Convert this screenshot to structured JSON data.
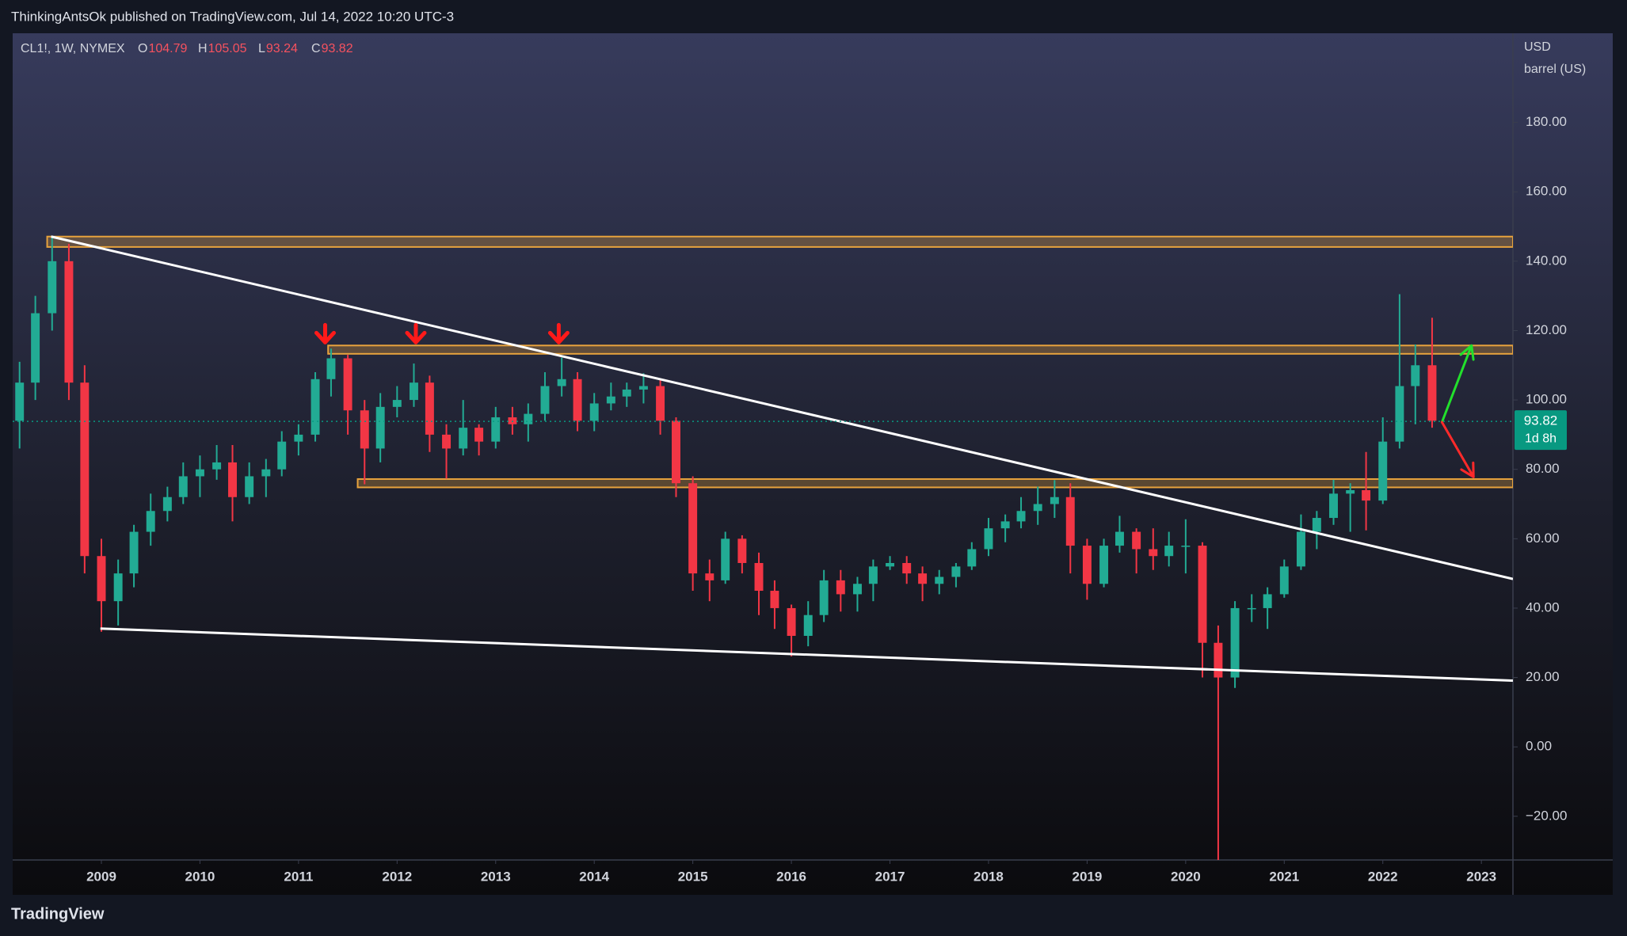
{
  "header": {
    "publisher": "ThinkingAntsOk published on TradingView.com, Jul 14, 2022 10:20 UTC-3",
    "symbol": "CL1!, 1W, NYMEX",
    "ohlc": [
      {
        "key": "O",
        "value": 104.79
      },
      {
        "key": "H",
        "value": 105.05
      },
      {
        "key": "L",
        "value": 93.24
      },
      {
        "key": "C",
        "value": 93.82
      }
    ]
  },
  "footer": {
    "brand": "TradingView"
  },
  "chart_data": {
    "type": "candlestick",
    "currency": "USD",
    "unit": "barrel (US)",
    "x": [
      2008.17,
      2008.33,
      2008.5,
      2008.67,
      2008.83,
      2009.0,
      2009.17,
      2009.33,
      2009.5,
      2009.67,
      2009.83,
      2010.0,
      2010.17,
      2010.33,
      2010.5,
      2010.67,
      2010.83,
      2011.0,
      2011.17,
      2011.33,
      2011.5,
      2011.67,
      2011.83,
      2012.0,
      2012.17,
      2012.33,
      2012.5,
      2012.67,
      2012.83,
      2013.0,
      2013.17,
      2013.33,
      2013.5,
      2013.67,
      2013.83,
      2014.0,
      2014.17,
      2014.33,
      2014.5,
      2014.67,
      2014.83,
      2015.0,
      2015.17,
      2015.33,
      2015.5,
      2015.67,
      2015.83,
      2016.0,
      2016.17,
      2016.33,
      2016.5,
      2016.67,
      2016.83,
      2017.0,
      2017.17,
      2017.33,
      2017.5,
      2017.67,
      2017.83,
      2018.0,
      2018.17,
      2018.33,
      2018.5,
      2018.67,
      2018.83,
      2019.0,
      2019.17,
      2019.33,
      2019.5,
      2019.67,
      2019.83,
      2020.0,
      2020.17,
      2020.33,
      2020.5,
      2020.67,
      2020.83,
      2021.0,
      2021.17,
      2021.33,
      2021.5,
      2021.67,
      2021.83,
      2022.0,
      2022.17,
      2022.33,
      2022.5
    ],
    "open": [
      94,
      105,
      125,
      140,
      105,
      55,
      42,
      50,
      62,
      68,
      72,
      78,
      80,
      82,
      72,
      78,
      80,
      88,
      90,
      106,
      112,
      97,
      86,
      98,
      100,
      105,
      90,
      86,
      92,
      88,
      95,
      93,
      96,
      104,
      106,
      94,
      99,
      101,
      103,
      104,
      94,
      76,
      50,
      48,
      60,
      53,
      45,
      40,
      32,
      38,
      48,
      44,
      47,
      52,
      53,
      50,
      47,
      49,
      52,
      57,
      63,
      65,
      68,
      70,
      72,
      58,
      47,
      58,
      62,
      57,
      55,
      58,
      58,
      30,
      20,
      40,
      40,
      44,
      52,
      62,
      66,
      73,
      74,
      71,
      88,
      104,
      110
    ],
    "high": [
      111,
      130,
      147.3,
      145,
      110,
      60,
      54,
      64,
      73,
      75,
      82,
      84,
      87,
      87,
      82,
      83,
      91,
      93,
      108,
      114.8,
      113,
      100,
      102,
      104,
      110.5,
      107,
      93,
      100,
      93,
      98,
      98,
      99,
      108,
      112.2,
      108,
      102,
      105,
      105,
      107.7,
      106,
      95,
      78,
      54,
      62,
      61,
      56,
      48,
      41,
      42,
      51,
      51,
      49,
      54,
      55,
      55,
      52,
      51,
      53,
      59,
      66,
      67,
      72,
      75,
      76.9,
      76,
      60,
      60,
      66.6,
      63,
      63,
      62,
      65.6,
      59,
      35,
      42,
      44,
      46,
      54,
      67,
      68,
      77,
      76,
      85,
      95,
      130.5,
      116,
      123.7
    ],
    "low": [
      86,
      100,
      120,
      100,
      50,
      33.2,
      35,
      46,
      58,
      65,
      70,
      72,
      77,
      65,
      70,
      72,
      78,
      84,
      88,
      101,
      90,
      75.7,
      82,
      95,
      98,
      85,
      77.3,
      84,
      84,
      86,
      90,
      88,
      94,
      101,
      91,
      91,
      97,
      98,
      99,
      90,
      72,
      45,
      42,
      47,
      50,
      38,
      34,
      26.1,
      29,
      36,
      39,
      39,
      42,
      51,
      47,
      42,
      44,
      46,
      51,
      55,
      59,
      63,
      64,
      66,
      50,
      42.4,
      46,
      56,
      50,
      51,
      52,
      50,
      20,
      -37.6,
      17,
      36,
      34,
      43,
      51,
      57,
      64,
      62,
      62.4,
      70,
      86,
      93,
      92
    ],
    "close": [
      105,
      125,
      140,
      105,
      55,
      42,
      50,
      62,
      68,
      72,
      78,
      80,
      82,
      72,
      78,
      80,
      88,
      90,
      106,
      112,
      97,
      86,
      98,
      100,
      105,
      90,
      86,
      92,
      88,
      95,
      93,
      96,
      104,
      106,
      94,
      99,
      101,
      103,
      104,
      94,
      76,
      50,
      48,
      60,
      53,
      45,
      40,
      32,
      38,
      48,
      44,
      47,
      52,
      53,
      50,
      47,
      49,
      52,
      57,
      63,
      65,
      68,
      70,
      72,
      58,
      47,
      58,
      62,
      57,
      55,
      58,
      58,
      30,
      20,
      40,
      40,
      44,
      52,
      62,
      66,
      73,
      74,
      71,
      88,
      104,
      110,
      94
    ],
    "up_color": "#22ab94",
    "down_color": "#f23645",
    "xlim": [
      2008.1,
      2023.32
    ],
    "xticks": [
      2009,
      2010,
      2011,
      2012,
      2013,
      2014,
      2015,
      2016,
      2017,
      2018,
      2019,
      2020,
      2021,
      2022,
      2023
    ],
    "ylim": [
      -32.6,
      205.7
    ],
    "yticks": [
      {
        "value": -20,
        "label": "−20.00"
      },
      {
        "value": 0,
        "label": "0.00"
      },
      {
        "value": 20,
        "label": "20.00"
      },
      {
        "value": 40,
        "label": "40.00"
      },
      {
        "value": 60,
        "label": "60.00"
      },
      {
        "value": 80,
        "label": "80.00"
      },
      {
        "value": 100,
        "label": "100.00"
      },
      {
        "value": 120,
        "label": "120.00"
      },
      {
        "value": 140,
        "label": "140.00"
      },
      {
        "value": 160,
        "label": "160.00"
      },
      {
        "value": 180,
        "label": "180.00"
      }
    ],
    "last_price": 93.82,
    "countdown": "1d 8h",
    "last_color": "#089981",
    "zone_color": "#e8a33d",
    "zones": [
      {
        "from": 2008.45,
        "low": 144.1,
        "high": 147.1
      },
      {
        "from": 2011.3,
        "low": 113.3,
        "high": 115.7
      },
      {
        "from": 2011.6,
        "low": 74.8,
        "high": 77.2
      }
    ],
    "trendlines": [
      {
        "x": [
          2008.49,
          2023.32
        ],
        "y": [
          147.1,
          48.4
        ],
        "color": "#ffffff"
      },
      {
        "x": [
          2008.99,
          2023.32
        ],
        "y": [
          34.1,
          19.1
        ],
        "color": "#ffffff"
      }
    ],
    "touch_markers": {
      "x": [
        2011.27,
        2012.19,
        2013.64
      ],
      "y": [
        116.6,
        116.6,
        116.6
      ],
      "color": "#ff1a1a"
    },
    "projections": [
      {
        "from": [
          2022.6,
          93.6
        ],
        "to": [
          2022.9,
          115.7
        ],
        "color": "#22e02c"
      },
      {
        "from": [
          2022.6,
          93.6
        ],
        "to": [
          2022.92,
          77.8
        ],
        "color": "#ff2a2a"
      }
    ]
  }
}
